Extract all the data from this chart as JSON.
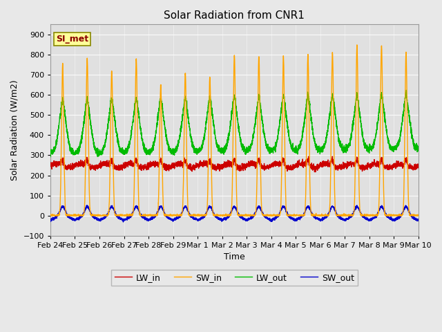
{
  "title": "Solar Radiation from CNR1",
  "xlabel": "Time",
  "ylabel": "Solar Radiation (W/m2)",
  "ylim": [
    -100,
    950
  ],
  "yticks": [
    -100,
    0,
    100,
    200,
    300,
    400,
    500,
    600,
    700,
    800,
    900
  ],
  "fig_bg": "#e8e8e8",
  "ax_bg": "#e0e0e0",
  "legend_labels": [
    "LW_in",
    "SW_in",
    "LW_out",
    "SW_out"
  ],
  "legend_colors": [
    "#cc0000",
    "#ffa500",
    "#00bb00",
    "#0000cc"
  ],
  "annotation_text": "SI_met",
  "annotation_color": "#8b0000",
  "annotation_bg": "#ffff99",
  "line_width": 1.0,
  "date_labels": [
    "Feb 24",
    "Feb 25",
    "Feb 26",
    "Feb 27",
    "Feb 28",
    "Feb 29",
    "Mar 1",
    "Mar 2",
    "Mar 3",
    "Mar 4",
    "Mar 5",
    "Mar 6",
    "Mar 7",
    "Mar 8",
    "Mar 9",
    "Mar 10"
  ],
  "n_days": 15,
  "pts_per_day": 288
}
